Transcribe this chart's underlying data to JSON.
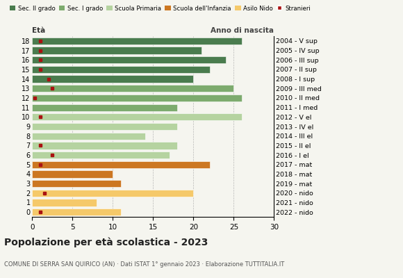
{
  "ages": [
    0,
    1,
    2,
    3,
    4,
    5,
    6,
    7,
    8,
    9,
    10,
    11,
    12,
    13,
    14,
    15,
    16,
    17,
    18
  ],
  "years": [
    "2022 - nido",
    "2021 - nido",
    "2020 - nido",
    "2019 - mat",
    "2018 - mat",
    "2017 - mat",
    "2016 - I el",
    "2015 - II el",
    "2014 - III el",
    "2013 - IV el",
    "2012 - V el",
    "2011 - I med",
    "2010 - II med",
    "2009 - III med",
    "2008 - I sup",
    "2007 - II sup",
    "2006 - III sup",
    "2005 - IV sup",
    "2004 - V sup"
  ],
  "bar_values": [
    11,
    8,
    20,
    11,
    10,
    22,
    17,
    18,
    14,
    18,
    26,
    18,
    26,
    25,
    20,
    22,
    24,
    21,
    26
  ],
  "bar_colors": [
    "#f5c96a",
    "#f5c96a",
    "#f5c96a",
    "#cc7722",
    "#cc7722",
    "#cc7722",
    "#b5d3a0",
    "#b5d3a0",
    "#b5d3a0",
    "#b5d3a0",
    "#b5d3a0",
    "#7dab6e",
    "#7dab6e",
    "#7dab6e",
    "#4a7c4e",
    "#4a7c4e",
    "#4a7c4e",
    "#4a7c4e",
    "#4a7c4e"
  ],
  "stranieri_x": [
    1.0,
    -1,
    1.5,
    -1,
    -1,
    1.0,
    2.5,
    1.0,
    -1,
    -1,
    1.0,
    -1,
    0.3,
    2.5,
    2.0,
    1.0,
    1.0,
    1.0,
    1.0
  ],
  "legend_labels": [
    "Sec. II grado",
    "Sec. I grado",
    "Scuola Primaria",
    "Scuola dell'Infanzia",
    "Asilo Nido",
    "Stranieri"
  ],
  "legend_colors": [
    "#4a7c4e",
    "#7dab6e",
    "#b5d3a0",
    "#cc7722",
    "#f5c96a",
    "#aa1111"
  ],
  "title": "Popolazione per età scolastica - 2023",
  "subtitle": "COMUNE DI SERRA SAN QUIRICO (AN) · Dati ISTAT 1° gennaio 2023 · Elaborazione TUTTITALIA.IT",
  "xlabel_left": "Età",
  "xlabel_right": "Anno di nascita",
  "xlim": [
    0,
    30
  ],
  "xticks": [
    0,
    5,
    10,
    15,
    20,
    25,
    30
  ],
  "bg_color": "#f5f5ef",
  "bar_height": 0.75
}
